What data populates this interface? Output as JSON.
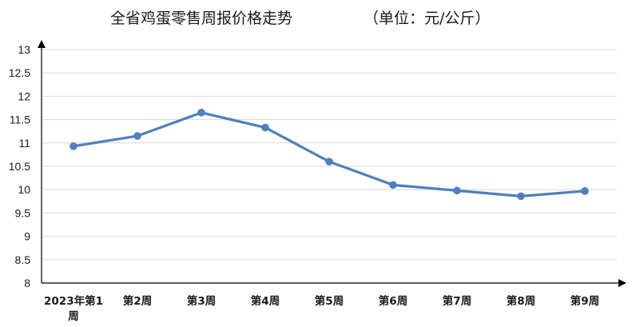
{
  "chart_data": {
    "type": "line",
    "title": "全省鸡蛋零售周报价格走势",
    "unit_label": "（单位：元/公斤）",
    "xlabel": "",
    "ylabel": "",
    "ylim": [
      8,
      13
    ],
    "yticks": [
      "13",
      "12.5",
      "12",
      "11.5",
      "11",
      "10.5",
      "10",
      "9.5",
      "9",
      "8.5",
      "8"
    ],
    "categories": [
      "2023年第1周",
      "第2周",
      "第3周",
      "第4周",
      "第5周",
      "第6周",
      "第7周",
      "第8周",
      "第9周"
    ],
    "series": [
      {
        "values": [
          10.93,
          11.15,
          11.65,
          11.33,
          10.6,
          10.1,
          9.98,
          9.86,
          9.97
        ]
      }
    ],
    "grid": true,
    "legend": "none",
    "line_color": "#4f7fbd"
  }
}
